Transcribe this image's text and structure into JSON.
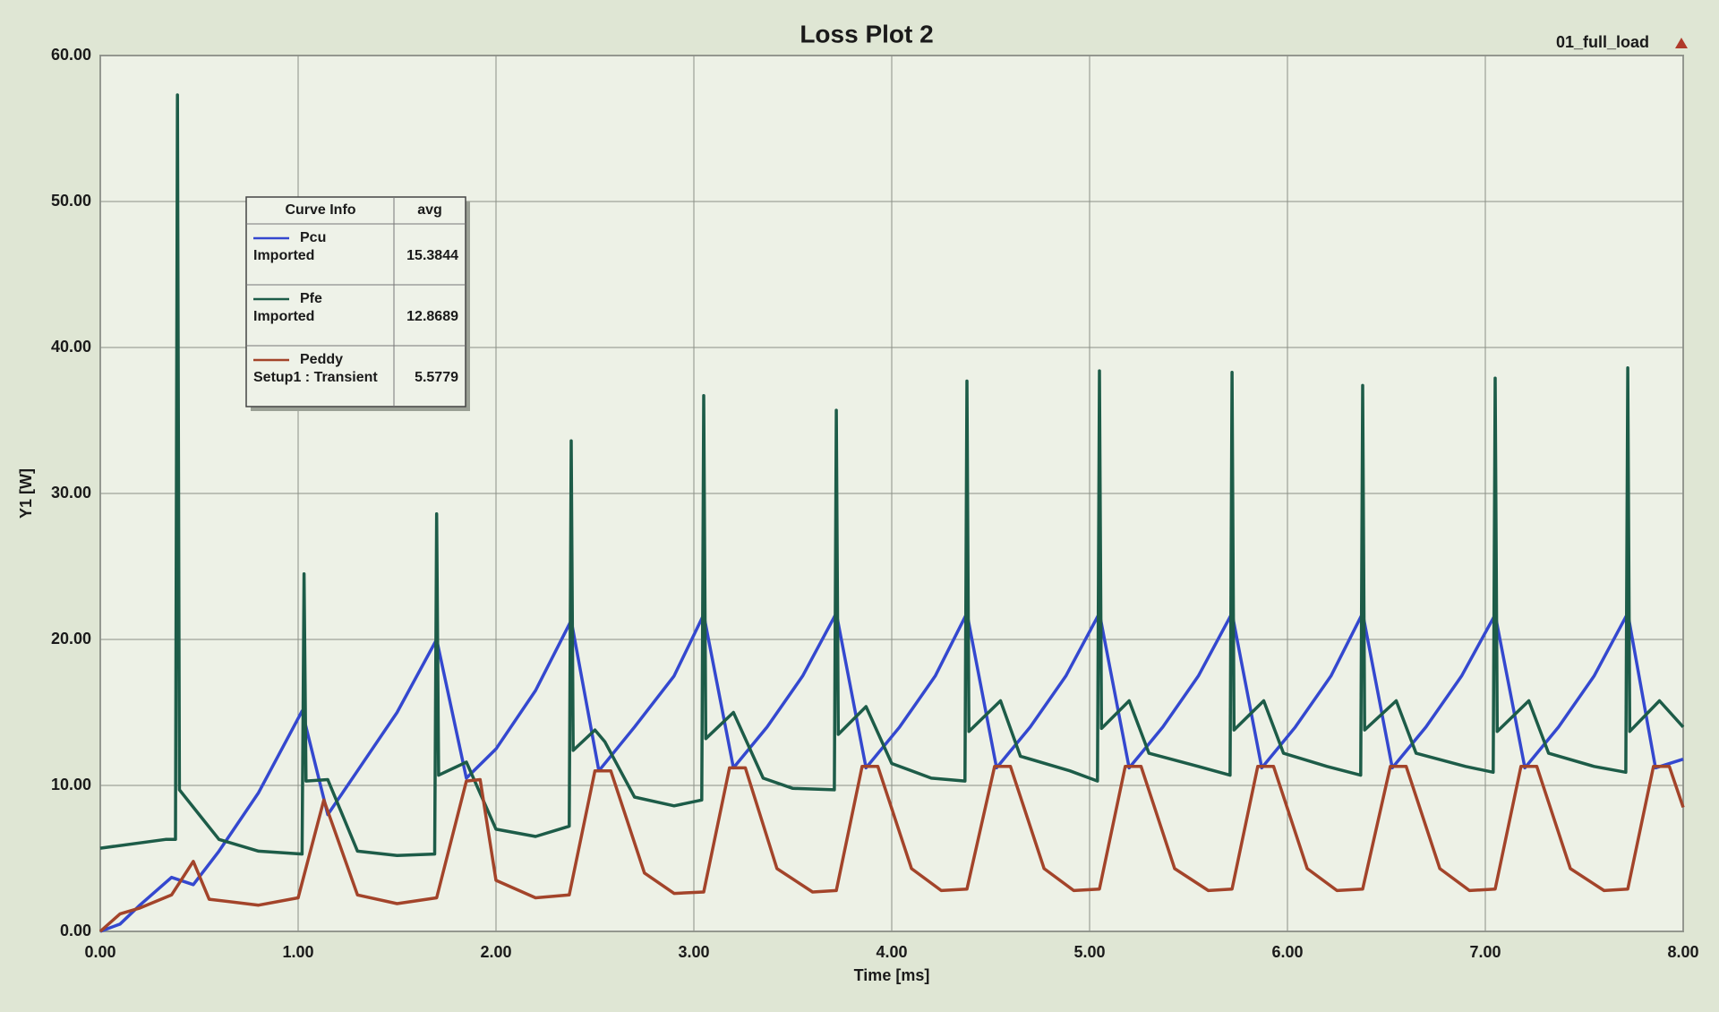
{
  "chart_data": {
    "type": "line",
    "title": "Loss Plot 2",
    "subtitle": "01_full_load",
    "x_label": "Time [ms]",
    "y_label": "Y1 [W]",
    "xlim": [
      0,
      8
    ],
    "ylim": [
      0,
      60
    ],
    "grid": true,
    "xticks": [
      {
        "value": 0,
        "label": "0.00"
      },
      {
        "value": 1,
        "label": "1.00"
      },
      {
        "value": 2,
        "label": "2.00"
      },
      {
        "value": 3,
        "label": "3.00"
      },
      {
        "value": 4,
        "label": "4.00"
      },
      {
        "value": 5,
        "label": "5.00"
      },
      {
        "value": 6,
        "label": "6.00"
      },
      {
        "value": 7,
        "label": "7.00"
      },
      {
        "value": 8,
        "label": "8.00"
      }
    ],
    "yticks": [
      {
        "value": 0,
        "label": "0.00"
      },
      {
        "value": 10,
        "label": "10.00"
      },
      {
        "value": 20,
        "label": "20.00"
      },
      {
        "value": 30,
        "label": "30.00"
      },
      {
        "value": 40,
        "label": "40.00"
      },
      {
        "value": 50,
        "label": "50.00"
      },
      {
        "value": 60,
        "label": "60.00"
      }
    ],
    "legend": {
      "header": [
        "Curve Info",
        "avg"
      ]
    },
    "series": [
      {
        "name": "Pcu",
        "source": "Imported",
        "avg": 15.3844,
        "color": "#3448cf",
        "x": [
          0,
          0.1,
          0.2,
          0.36,
          0.47,
          0.6,
          0.8,
          1.02,
          1.15,
          1.3,
          1.5,
          1.7,
          1.85,
          2.0,
          2.2,
          2.38,
          2.52,
          2.7,
          2.9,
          3.05,
          3.2,
          3.37,
          3.55,
          3.72,
          3.87,
          4.04,
          4.22,
          4.38,
          4.53,
          4.7,
          4.88,
          5.05,
          5.2,
          5.37,
          5.55,
          5.72,
          5.87,
          6.04,
          6.22,
          6.38,
          6.53,
          6.7,
          6.88,
          7.05,
          7.2,
          7.37,
          7.55,
          7.72,
          7.86,
          8.0
        ],
        "values": [
          0,
          0.5,
          1.8,
          3.7,
          3.2,
          5.5,
          9.5,
          15.1,
          8.0,
          11,
          15,
          20.0,
          10.5,
          12.5,
          16.5,
          21.3,
          11.0,
          14,
          17.5,
          21.7,
          11.2,
          14,
          17.5,
          21.8,
          11.2,
          14,
          17.5,
          21.8,
          11.2,
          14,
          17.5,
          21.8,
          11.2,
          14,
          17.5,
          21.8,
          11.2,
          14,
          17.5,
          21.8,
          11.2,
          14,
          17.5,
          21.7,
          11.2,
          14,
          17.5,
          21.8,
          11.2,
          11.8
        ]
      },
      {
        "name": "Pfe",
        "source": "Imported",
        "avg": 12.8689,
        "color": "#1d5c48",
        "x": [
          0,
          0.33,
          0.38,
          0.39,
          0.4,
          0.5,
          0.6,
          0.8,
          1.02,
          1.03,
          1.04,
          1.15,
          1.3,
          1.5,
          1.69,
          1.7,
          1.71,
          1.85,
          2.0,
          2.2,
          2.37,
          2.38,
          2.39,
          2.5,
          2.55,
          2.7,
          2.9,
          3.04,
          3.05,
          3.06,
          3.2,
          3.35,
          3.5,
          3.71,
          3.72,
          3.73,
          3.87,
          4.0,
          4.2,
          4.37,
          4.38,
          4.39,
          4.55,
          4.65,
          4.9,
          5.04,
          5.05,
          5.06,
          5.2,
          5.3,
          5.55,
          5.71,
          5.72,
          5.73,
          5.88,
          5.98,
          6.2,
          6.37,
          6.38,
          6.39,
          6.55,
          6.65,
          6.9,
          7.04,
          7.05,
          7.06,
          7.22,
          7.32,
          7.55,
          7.71,
          7.72,
          7.73,
          7.88,
          8.0
        ],
        "values": [
          5.7,
          6.3,
          6.3,
          57.3,
          9.7,
          8.0,
          6.3,
          5.5,
          5.3,
          24.5,
          10.3,
          10.4,
          5.5,
          5.2,
          5.3,
          28.6,
          10.7,
          11.6,
          7,
          6.5,
          7.2,
          33.6,
          12.4,
          13.8,
          13.0,
          9.2,
          8.6,
          9.0,
          36.7,
          13.2,
          15.0,
          10.5,
          9.8,
          9.7,
          35.7,
          13.5,
          15.4,
          11.5,
          10.5,
          10.3,
          37.7,
          13.7,
          15.8,
          12.0,
          11,
          10.3,
          38.4,
          13.9,
          15.8,
          12.2,
          11.3,
          10.7,
          38.3,
          13.8,
          15.8,
          12.2,
          11.3,
          10.7,
          37.4,
          13.8,
          15.8,
          12.2,
          11.3,
          10.9,
          37.9,
          13.7,
          15.8,
          12.2,
          11.3,
          10.9,
          38.6,
          13.7,
          15.8,
          14.0
        ]
      },
      {
        "name": "Peddy",
        "source": "Setup1 : Transient",
        "avg": 5.5779,
        "color": "#a3442a",
        "x": [
          0,
          0.1,
          0.2,
          0.36,
          0.47,
          0.55,
          0.8,
          1.0,
          1.13,
          1.3,
          1.5,
          1.7,
          1.85,
          1.92,
          2.0,
          2.2,
          2.37,
          2.5,
          2.58,
          2.75,
          2.9,
          3.05,
          3.18,
          3.26,
          3.42,
          3.6,
          3.72,
          3.85,
          3.93,
          4.1,
          4.25,
          4.38,
          4.52,
          4.6,
          4.77,
          4.92,
          5.05,
          5.18,
          5.26,
          5.43,
          5.6,
          5.72,
          5.85,
          5.93,
          6.1,
          6.25,
          6.38,
          6.52,
          6.6,
          6.77,
          6.92,
          7.05,
          7.18,
          7.26,
          7.43,
          7.6,
          7.72,
          7.85,
          7.93,
          8.0
        ],
        "values": [
          0,
          1.2,
          1.6,
          2.5,
          4.8,
          2.2,
          1.8,
          2.3,
          9.0,
          2.5,
          1.9,
          2.3,
          10.3,
          10.4,
          3.5,
          2.3,
          2.5,
          11.0,
          11.0,
          4.0,
          2.6,
          2.7,
          11.2,
          11.2,
          4.3,
          2.7,
          2.8,
          11.3,
          11.3,
          4.3,
          2.8,
          2.9,
          11.3,
          11.3,
          4.3,
          2.8,
          2.9,
          11.3,
          11.3,
          4.3,
          2.8,
          2.9,
          11.3,
          11.3,
          4.3,
          2.8,
          2.9,
          11.3,
          11.3,
          4.3,
          2.8,
          2.9,
          11.3,
          11.3,
          4.3,
          2.8,
          2.9,
          11.3,
          11.3,
          8.5
        ]
      }
    ]
  }
}
